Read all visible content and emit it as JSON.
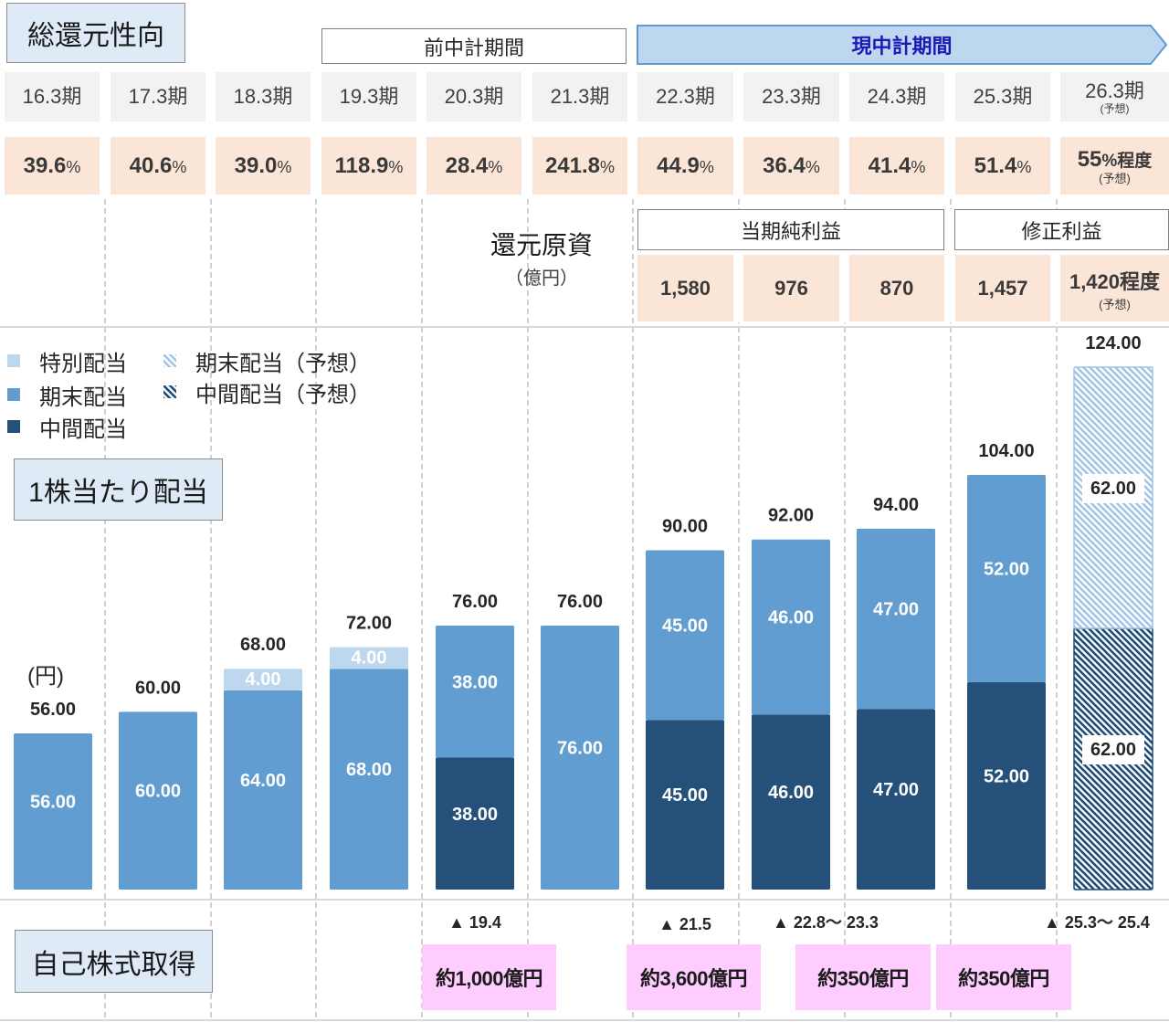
{
  "labels": {
    "total_return_ratio": "総還元性向",
    "prev_plan": "前中計期間",
    "current_plan": "現中計期間",
    "return_source": "還元原資",
    "return_source_unit": "（億円）",
    "net_income": "当期純利益",
    "adjusted_income": "修正利益",
    "dividend_per_share": "1株当たり配当",
    "yen_unit": "(円)",
    "share_buyback": "自己株式取得"
  },
  "periods": [
    {
      "label": "16.3期"
    },
    {
      "label": "17.3期"
    },
    {
      "label": "18.3期"
    },
    {
      "label": "19.3期"
    },
    {
      "label": "20.3期"
    },
    {
      "label": "21.3期"
    },
    {
      "label": "22.3期"
    },
    {
      "label": "23.3期"
    },
    {
      "label": "24.3期"
    },
    {
      "label": "25.3期"
    },
    {
      "label": "26.3期",
      "note": "(予想)"
    }
  ],
  "return_ratio": [
    {
      "value": "39.6",
      "unit": "%"
    },
    {
      "value": "40.6",
      "unit": "%"
    },
    {
      "value": "39.0",
      "unit": "%"
    },
    {
      "value": "118.9",
      "unit": "%"
    },
    {
      "value": "28.4",
      "unit": "%"
    },
    {
      "value": "241.8",
      "unit": "%"
    },
    {
      "value": "44.9",
      "unit": "%"
    },
    {
      "value": "36.4",
      "unit": "%"
    },
    {
      "value": "41.4",
      "unit": "%"
    },
    {
      "value": "51.4",
      "unit": "%"
    },
    {
      "value": "55",
      "unit": "%程度",
      "note": "(予想)"
    }
  ],
  "return_source_values": [
    {
      "period": "22.3期",
      "value": "1,580"
    },
    {
      "period": "23.3期",
      "value": "976"
    },
    {
      "period": "24.3期",
      "value": "870"
    },
    {
      "period": "25.3期",
      "value": "1,457"
    },
    {
      "period": "26.3期",
      "value": "1,420",
      "suffix": "程度",
      "note": "(予想)"
    }
  ],
  "legend": [
    {
      "label": "特別配当",
      "color": "#bdd7ee",
      "style": "solid"
    },
    {
      "label": "期末配当",
      "color": "#629dd1",
      "style": "solid"
    },
    {
      "label": "中間配当",
      "color": "#24507a",
      "style": "solid"
    },
    {
      "label": "期末配当（予想）",
      "color": "#9dc3e6",
      "style": "hatched"
    },
    {
      "label": "中間配当（予想）",
      "color": "#1f4e79",
      "style": "hatched"
    }
  ],
  "share_buyback": {
    "periods": [
      {
        "text": "▲ 19.4"
      },
      {
        "text": "▲ 21.5"
      },
      {
        "text": "▲ 22.8〜 23.3"
      },
      {
        "text": "▲ 25.3〜 25.4"
      }
    ],
    "amounts": [
      {
        "text": "約1,000億円"
      },
      {
        "text": "約3,600億円"
      },
      {
        "text": "約350億円"
      },
      {
        "text": "約350億円"
      }
    ]
  },
  "colors": {
    "title_box_bg": "#deebf7",
    "header_cell_bg": "#f2f2f2",
    "value_cell_bg": "#fbe5d6",
    "current_plan_fill": "#bdd7ee",
    "current_plan_border": "#5b9bd5",
    "current_plan_text": "#1a1ab8",
    "buyback_bg": "#ffccff"
  },
  "chart_data": {
    "type": "bar",
    "stacked": true,
    "title": "1株当たり配当",
    "xlabel": "",
    "ylabel": "(円)",
    "ylim": [
      27,
      124
    ],
    "grid": false,
    "legend_position": "top-left",
    "categories": [
      "16.3期",
      "17.3期",
      "18.3期",
      "19.3期",
      "20.3期",
      "21.3期",
      "22.3期",
      "23.3期",
      "24.3期",
      "25.3期",
      "26.3期"
    ],
    "series": [
      {
        "name": "中間配当",
        "role": "interim",
        "color": "#24507a",
        "style": "solid",
        "values": [
          null,
          null,
          null,
          null,
          38,
          null,
          45,
          46,
          47,
          52,
          null
        ],
        "labels": [
          null,
          null,
          null,
          null,
          "38.00",
          null,
          "45.00",
          "46.00",
          "47.00",
          "52.00",
          null
        ]
      },
      {
        "name": "中間配当（予想）",
        "role": "interim-forecast",
        "color": "#1f4e79",
        "style": "hatched",
        "values": [
          null,
          null,
          null,
          null,
          null,
          null,
          null,
          null,
          null,
          null,
          62
        ],
        "labels": [
          null,
          null,
          null,
          null,
          null,
          null,
          null,
          null,
          null,
          null,
          "62.00"
        ]
      },
      {
        "name": "期末配当",
        "role": "year-end",
        "color": "#629dd1",
        "style": "solid",
        "values": [
          56,
          60,
          64,
          68,
          38,
          76,
          45,
          46,
          47,
          52,
          null
        ],
        "labels": [
          "56.00",
          "60.00",
          "64.00",
          "68.00",
          "38.00",
          "76.00",
          "45.00",
          "46.00",
          "47.00",
          "52.00",
          null
        ]
      },
      {
        "name": "期末配当（予想）",
        "role": "year-end-forecast",
        "color": "#9dc3e6",
        "style": "hatched",
        "values": [
          null,
          null,
          null,
          null,
          null,
          null,
          null,
          null,
          null,
          null,
          62
        ],
        "labels": [
          null,
          null,
          null,
          null,
          null,
          null,
          null,
          null,
          null,
          null,
          "62.00"
        ]
      },
      {
        "name": "特別配当",
        "role": "special",
        "color": "#bdd7ee",
        "style": "solid",
        "values": [
          null,
          null,
          4,
          4,
          null,
          null,
          null,
          null,
          null,
          null,
          null
        ],
        "labels": [
          null,
          null,
          "4.00",
          "4.00",
          null,
          null,
          null,
          null,
          null,
          null,
          null
        ]
      }
    ],
    "totals": [
      56,
      60,
      68,
      72,
      76,
      76,
      90,
      92,
      94,
      104,
      124
    ],
    "total_labels": [
      "56.00",
      "60.00",
      "68.00",
      "72.00",
      "76.00",
      "76.00",
      "90.00",
      "92.00",
      "94.00",
      "104.00",
      "124.00"
    ]
  }
}
